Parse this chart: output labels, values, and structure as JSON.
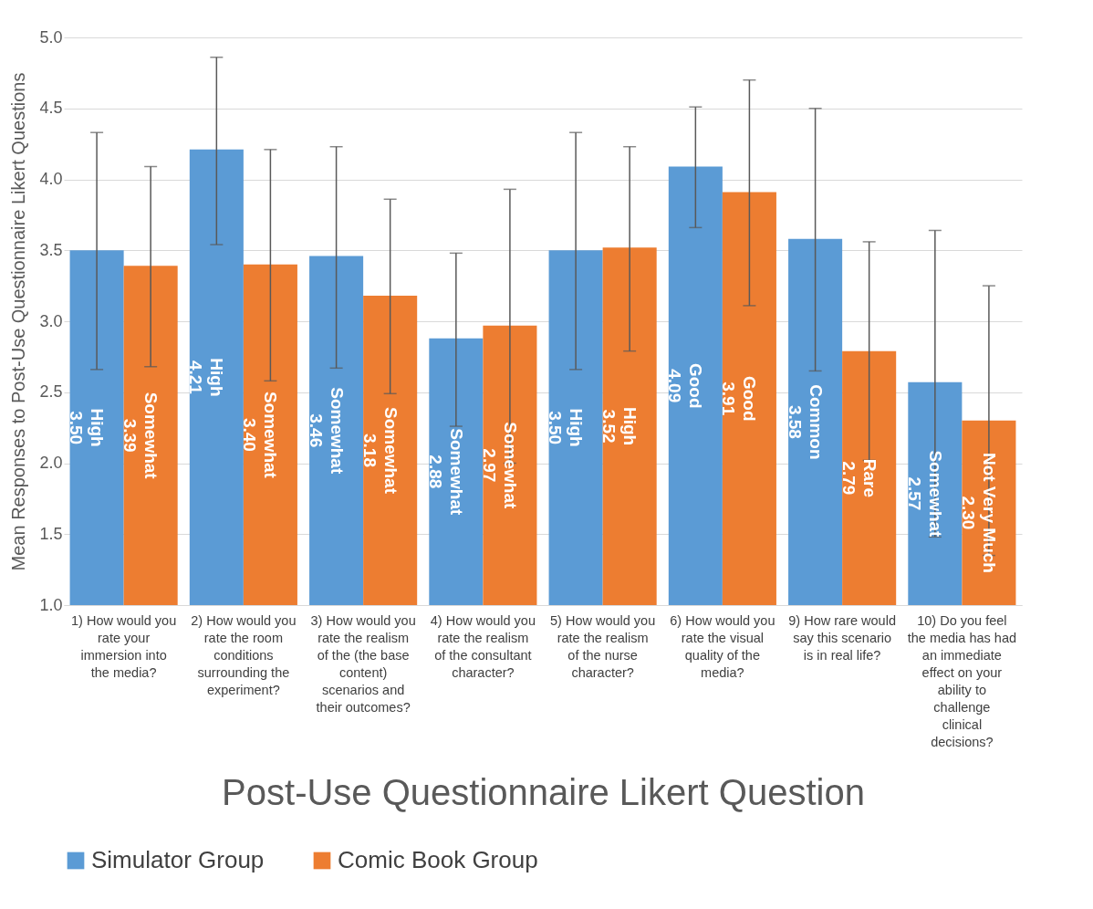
{
  "chart_data": {
    "type": "bar",
    "xlabel": "Post-Use Questionnaire Likert Question",
    "ylabel": "Mean Responses to Post-Use Questionnaire Likert Questions",
    "categories": [
      "1) How would you rate your immersion into the media?",
      "2) How would you rate the room conditions surrounding the experiment?",
      "3) How would you rate the realism of the (the base content) scenarios and their outcomes?",
      "4) How would you rate the realism of the consultant character?",
      "5) How would you rate the realism of the nurse character?",
      "6) How would you rate the visual quality of the media?",
      "9) How rare would say this scenario is in real life?",
      "10) Do you feel the media has had an immediate effect on your ability to challenge clinical decisions?"
    ],
    "series": [
      {
        "name": "Simulator Group",
        "color": "#5b9bd5",
        "values": [
          3.5,
          4.21,
          3.46,
          2.88,
          3.5,
          4.09,
          3.58,
          2.57
        ],
        "errors": [
          [
            2.66,
            4.33
          ],
          [
            3.54,
            4.86
          ],
          [
            2.67,
            4.23
          ],
          [
            2.26,
            3.48
          ],
          [
            2.66,
            4.33
          ],
          [
            3.66,
            4.51
          ],
          [
            2.65,
            4.5
          ],
          [
            1.48,
            3.64
          ]
        ],
        "value_labels": [
          "High\n3.50",
          "High\n4.21",
          "Somewhat\n3.46",
          "Somewhat\n2.88",
          "High\n3.50",
          "Good\n4.09",
          "Common\n3.58",
          "Somewhat\n2.57"
        ]
      },
      {
        "name": "Comic Book Group",
        "color": "#ed7d31",
        "values": [
          3.39,
          3.4,
          3.18,
          2.97,
          3.52,
          3.91,
          2.79,
          2.3
        ],
        "errors": [
          [
            2.68,
            4.09
          ],
          [
            2.58,
            4.21
          ],
          [
            2.49,
            3.86
          ],
          [
            2.0,
            3.93
          ],
          [
            2.79,
            4.23
          ],
          [
            3.11,
            4.7
          ],
          [
            2.02,
            3.56
          ],
          [
            1.35,
            3.25
          ]
        ],
        "value_labels": [
          "Somewhat\n3.39",
          "Somewhat\n3.40",
          "Somewhat\n3.18",
          "Somewhat\n2.97",
          "High\n3.52",
          "Good\n3.91",
          "Rare\n2.79",
          "Not Very Much\n2.30"
        ]
      }
    ],
    "ylim": [
      1.0,
      5.0
    ],
    "yticks": [
      {
        "value": 1,
        "label": "1.0"
      },
      {
        "value": 1.5,
        "label": "1.5"
      },
      {
        "value": 2,
        "label": "2.0"
      },
      {
        "value": 2.5,
        "label": "2.5"
      },
      {
        "value": 3,
        "label": "3.0"
      },
      {
        "value": 3.5,
        "label": "3.5"
      },
      {
        "value": 4,
        "label": "4.0"
      },
      {
        "value": 4.5,
        "label": "4.5"
      },
      {
        "value": 5,
        "label": "5.0"
      }
    ],
    "grid": "y",
    "legend": "bottom"
  }
}
